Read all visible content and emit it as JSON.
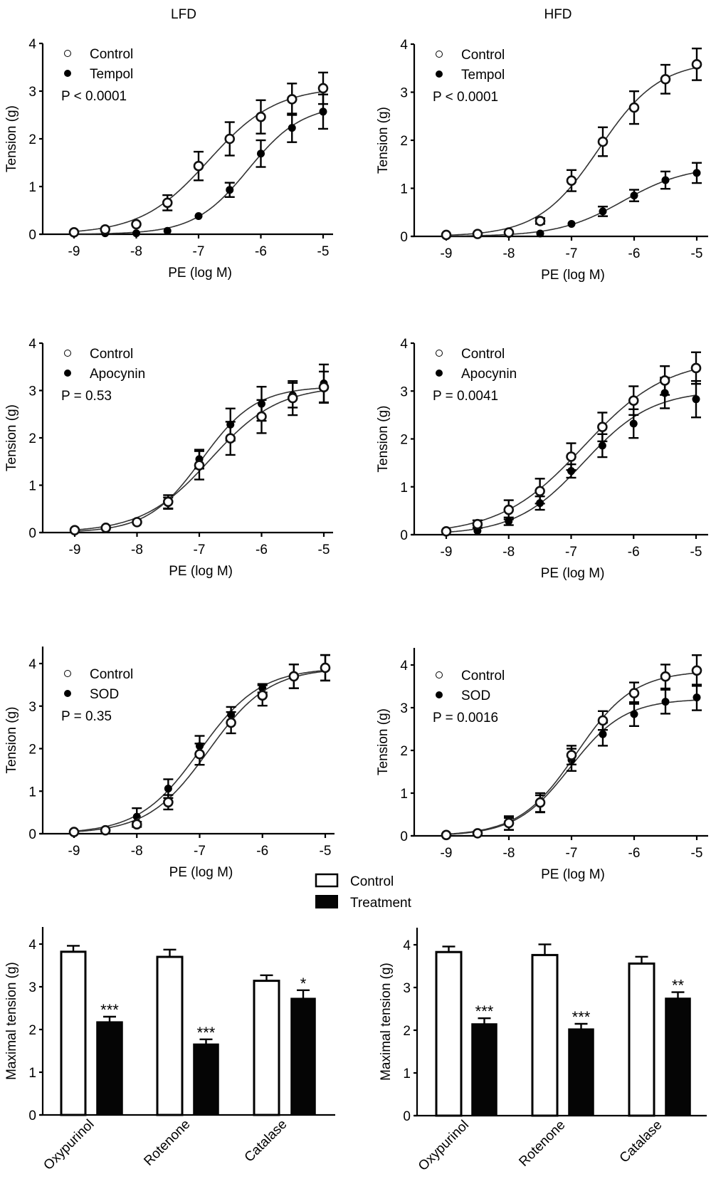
{
  "figure": {
    "column_titles": [
      "LFD",
      "HFD"
    ],
    "bar_legend": [
      "Control",
      "Treatment"
    ]
  },
  "chart_data": [
    {
      "id": "lfd-tempol",
      "type": "line",
      "title": "LFD",
      "xlabel": "PE (log M)",
      "ylabel": "Tension (g)",
      "xlim": [
        -9.5,
        -5
      ],
      "ylim": [
        0,
        4
      ],
      "xticks": [
        -9,
        -8,
        -7,
        -6,
        -5
      ],
      "yticks": [
        0,
        1,
        2,
        3,
        4
      ],
      "legend": "top-left",
      "annotation": "P < 0.0001",
      "x": [
        -9,
        -8.5,
        -8,
        -7.5,
        -7,
        -6.5,
        -6,
        -5.5,
        -5
      ],
      "series": [
        {
          "name": "Control",
          "marker": "open-circle",
          "values": [
            0.04,
            0.1,
            0.21,
            0.66,
            1.43,
            2.0,
            2.46,
            2.83,
            3.06
          ],
          "errors": [
            0.03,
            0.04,
            0.05,
            0.16,
            0.3,
            0.35,
            0.35,
            0.33,
            0.33
          ]
        },
        {
          "name": "Tempol",
          "marker": "filled-circle",
          "values": [
            0.03,
            0.02,
            0.02,
            0.07,
            0.38,
            0.93,
            1.69,
            2.23,
            2.57
          ],
          "errors": [
            0.02,
            0.02,
            0.02,
            0.03,
            0.04,
            0.15,
            0.28,
            0.3,
            0.36
          ]
        }
      ]
    },
    {
      "id": "hfd-tempol",
      "type": "line",
      "title": "HFD",
      "xlabel": "PE (log M)",
      "ylabel": "Tension (g)",
      "xlim": [
        -9.5,
        -5
      ],
      "ylim": [
        0,
        4
      ],
      "xticks": [
        -9,
        -8,
        -7,
        -6,
        -5
      ],
      "yticks": [
        0,
        1,
        2,
        3,
        4
      ],
      "legend": "top-left",
      "annotation": "P < 0.0001",
      "x": [
        -9,
        -8.5,
        -8,
        -7.5,
        -7,
        -6.5,
        -6,
        -5.5,
        -5
      ],
      "series": [
        {
          "name": "Control",
          "marker": "open-circle",
          "values": [
            0.03,
            0.05,
            0.08,
            0.32,
            1.16,
            1.97,
            2.68,
            3.27,
            3.58
          ],
          "errors": [
            0.02,
            0.03,
            0.04,
            0.06,
            0.22,
            0.3,
            0.34,
            0.3,
            0.33
          ]
        },
        {
          "name": "Tempol",
          "marker": "filled-circle",
          "values": [
            0.02,
            0.03,
            0.05,
            0.06,
            0.26,
            0.52,
            0.85,
            1.17,
            1.32
          ],
          "errors": [
            0.02,
            0.02,
            0.02,
            0.03,
            0.04,
            0.1,
            0.12,
            0.18,
            0.21
          ]
        }
      ]
    },
    {
      "id": "lfd-apocynin",
      "type": "line",
      "title": "",
      "xlabel": "PE (log M)",
      "ylabel": "Tension (g)",
      "xlim": [
        -9.5,
        -5
      ],
      "ylim": [
        0,
        4
      ],
      "xticks": [
        -9,
        -8,
        -7,
        -6,
        -5
      ],
      "yticks": [
        0,
        1,
        2,
        3,
        4
      ],
      "legend": "top-left",
      "annotation": "P = 0.53",
      "x": [
        -9,
        -8.5,
        -8,
        -7.5,
        -7,
        -6.5,
        -6,
        -5.5,
        -5
      ],
      "series": [
        {
          "name": "Control",
          "marker": "open-circle",
          "values": [
            0.05,
            0.1,
            0.22,
            0.65,
            1.42,
            1.99,
            2.45,
            2.84,
            3.07
          ],
          "errors": [
            0.02,
            0.03,
            0.04,
            0.14,
            0.3,
            0.35,
            0.35,
            0.36,
            0.33
          ]
        },
        {
          "name": "Apocynin",
          "marker": "filled-circle",
          "values": [
            0.05,
            0.1,
            0.22,
            0.62,
            1.55,
            2.28,
            2.72,
            2.9,
            3.15
          ],
          "errors": [
            0.02,
            0.03,
            0.04,
            0.12,
            0.2,
            0.34,
            0.36,
            0.26,
            0.4
          ]
        }
      ]
    },
    {
      "id": "hfd-apocynin",
      "type": "line",
      "title": "",
      "xlabel": "PE (log M)",
      "ylabel": "Tension (g)",
      "xlim": [
        -9.5,
        -5
      ],
      "ylim": [
        0,
        4
      ],
      "xticks": [
        -9,
        -8,
        -7,
        -6,
        -5
      ],
      "yticks": [
        0,
        1,
        2,
        3,
        4
      ],
      "legend": "top-left",
      "annotation": "P = 0.0041",
      "x": [
        -9,
        -8.5,
        -8,
        -7.5,
        -7,
        -6.5,
        -6,
        -5.5,
        -5
      ],
      "series": [
        {
          "name": "Control",
          "marker": "open-circle",
          "values": [
            0.07,
            0.22,
            0.52,
            0.91,
            1.63,
            2.25,
            2.8,
            3.22,
            3.48
          ],
          "errors": [
            0.03,
            0.08,
            0.2,
            0.26,
            0.28,
            0.3,
            0.3,
            0.3,
            0.33
          ]
        },
        {
          "name": "Apocynin",
          "marker": "filled-circle",
          "values": [
            0.06,
            0.08,
            0.28,
            0.66,
            1.33,
            1.86,
            2.32,
            2.96,
            2.83
          ],
          "errors": [
            0.03,
            0.04,
            0.08,
            0.14,
            0.14,
            0.24,
            0.3,
            0.32,
            0.38
          ]
        }
      ]
    },
    {
      "id": "lfd-sod",
      "type": "line",
      "title": "",
      "xlabel": "PE (log M)",
      "ylabel": "Tension (g)",
      "xlim": [
        -9.5,
        -5
      ],
      "ylim": [
        0,
        4.4
      ],
      "xticks": [
        -9,
        -8,
        -7,
        -6,
        -5
      ],
      "yticks": [
        0,
        1,
        2,
        3,
        4
      ],
      "legend": "top-left",
      "annotation": "P = 0.35",
      "x": [
        -9,
        -8.5,
        -8,
        -7.5,
        -7,
        -6.5,
        -6,
        -5.5,
        -5
      ],
      "series": [
        {
          "name": "Control",
          "marker": "open-circle",
          "values": [
            0.04,
            0.08,
            0.22,
            0.74,
            1.87,
            2.61,
            3.25,
            3.7,
            3.9
          ],
          "errors": [
            0.02,
            0.03,
            0.06,
            0.17,
            0.25,
            0.25,
            0.24,
            0.28,
            0.3
          ]
        },
        {
          "name": "SOD",
          "marker": "filled-circle",
          "values": [
            0.04,
            0.1,
            0.4,
            1.06,
            2.06,
            2.8,
            3.42,
            3.7,
            3.9
          ],
          "errors": [
            0.02,
            0.03,
            0.2,
            0.22,
            0.24,
            0.18,
            0.1,
            0.28,
            0.3
          ]
        }
      ]
    },
    {
      "id": "hfd-sod",
      "type": "line",
      "title": "",
      "xlabel": "PE (log M)",
      "ylabel": "Tension (g)",
      "xlim": [
        -9.5,
        -5
      ],
      "ylim": [
        0,
        4.4
      ],
      "xticks": [
        -9,
        -8,
        -7,
        -6,
        -5
      ],
      "yticks": [
        0,
        1,
        2,
        3,
        4
      ],
      "legend": "top-left",
      "annotation": "P = 0.0016",
      "x": [
        -9,
        -8.5,
        -8,
        -7.5,
        -7,
        -6.5,
        -6,
        -5.5,
        -5
      ],
      "series": [
        {
          "name": "Control",
          "marker": "open-circle",
          "values": [
            0.02,
            0.06,
            0.3,
            0.78,
            1.89,
            2.7,
            3.34,
            3.73,
            3.87
          ],
          "errors": [
            0.02,
            0.03,
            0.16,
            0.22,
            0.22,
            0.22,
            0.25,
            0.28,
            0.36
          ]
        },
        {
          "name": "SOD",
          "marker": "filled-circle",
          "values": [
            0.02,
            0.06,
            0.28,
            0.75,
            1.78,
            2.38,
            2.85,
            3.14,
            3.24
          ],
          "errors": [
            0.02,
            0.03,
            0.14,
            0.2,
            0.26,
            0.27,
            0.28,
            0.28,
            0.3
          ]
        }
      ]
    },
    {
      "id": "lfd-bars",
      "type": "bar",
      "title": "",
      "xlabel": "",
      "ylabel": "Maximal tension (g)",
      "ylim": [
        0,
        4.4
      ],
      "yticks": [
        0,
        1,
        2,
        3,
        4
      ],
      "categories": [
        "Oxypurinol",
        "Rotenone",
        "Catalase"
      ],
      "series": [
        {
          "name": "Control",
          "values": [
            3.82,
            3.7,
            3.14
          ],
          "errors": [
            0.14,
            0.17,
            0.13
          ]
        },
        {
          "name": "Treatment",
          "values": [
            2.18,
            1.66,
            2.73
          ],
          "errors": [
            0.12,
            0.11,
            0.19
          ]
        }
      ],
      "significance": [
        "***",
        "***",
        "*"
      ]
    },
    {
      "id": "hfd-bars",
      "type": "bar",
      "title": "",
      "xlabel": "",
      "ylabel": "Maximal tension (g)",
      "ylim": [
        0,
        4.4
      ],
      "yticks": [
        0,
        1,
        2,
        3,
        4
      ],
      "categories": [
        "Oxypurinol",
        "Rotenone",
        "Catalase"
      ],
      "series": [
        {
          "name": "Control",
          "values": [
            3.83,
            3.76,
            3.56
          ],
          "errors": [
            0.13,
            0.25,
            0.16
          ]
        },
        {
          "name": "Treatment",
          "values": [
            2.15,
            2.03,
            2.75
          ],
          "errors": [
            0.13,
            0.12,
            0.14
          ]
        }
      ],
      "significance": [
        "***",
        "***",
        "**"
      ]
    }
  ]
}
